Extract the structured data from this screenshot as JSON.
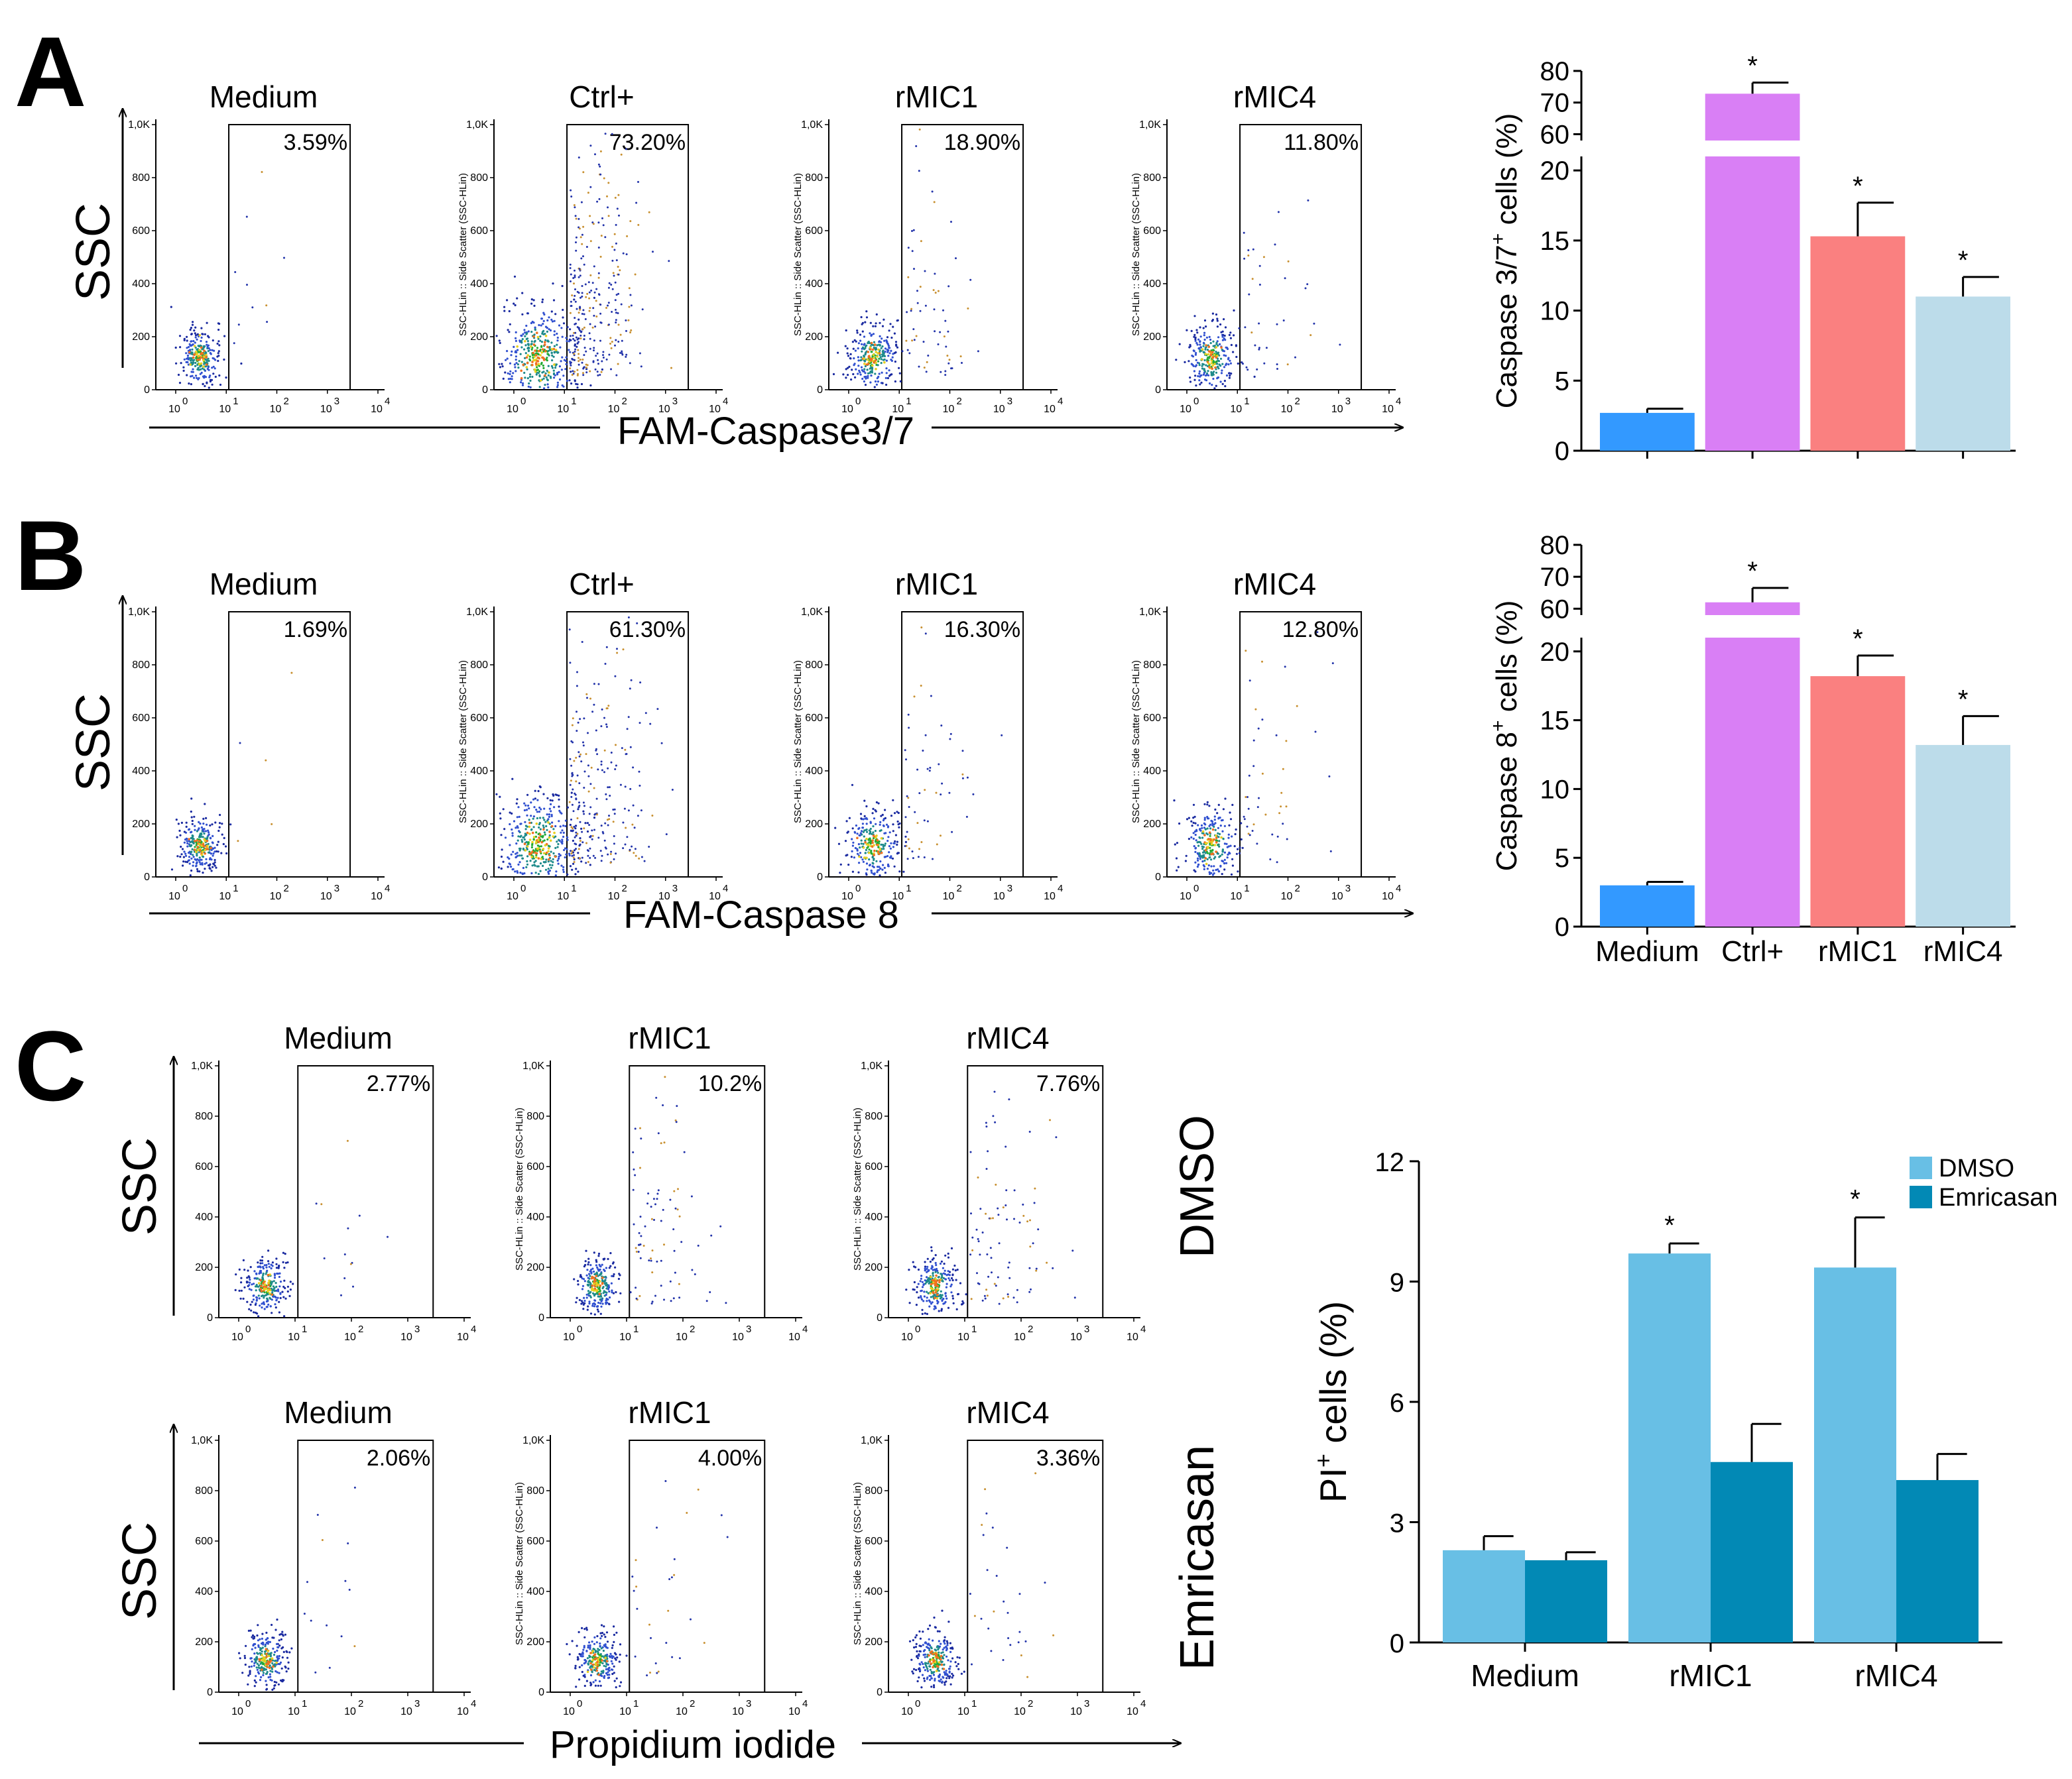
{
  "figure": {
    "panel_labels": [
      "A",
      "B",
      "C"
    ],
    "ssc_label": "SSC",
    "flow_tick_labels_x": [
      "10",
      "0",
      "10",
      "1",
      "10",
      "2",
      "10",
      "3",
      "10",
      "4"
    ],
    "flow_tick_labels_y": [
      "1,0K",
      "800",
      "600",
      "400",
      "200",
      "0"
    ],
    "flow_y_axis_label": "SSC-HLin :: Side Scatter (SSC-HLin)",
    "rows": [
      {
        "x_axis_label": "FAM-Caspase3/7",
        "plots": [
          {
            "title": "Medium",
            "percent": "3.59%"
          },
          {
            "title": "Ctrl+",
            "percent": "73.20%"
          },
          {
            "title": "rMIC1",
            "percent": "18.90%"
          },
          {
            "title": "rMIC4",
            "percent": "11.80%"
          }
        ]
      },
      {
        "x_axis_label": "FAM-Caspase 8",
        "plots": [
          {
            "title": "Medium",
            "percent": "1.69%"
          },
          {
            "title": "Ctrl+",
            "percent": "61.30%"
          },
          {
            "title": "rMIC1",
            "percent": "16.30%"
          },
          {
            "title": "rMIC4",
            "percent": "12.80%"
          }
        ]
      }
    ],
    "panel_c": {
      "x_axis_label": "Propidium iodide",
      "row_labels": [
        "DMSO",
        "Emricasan"
      ],
      "rows": [
        [
          {
            "title": "Medium",
            "percent": "2.77%"
          },
          {
            "title": "rMIC1",
            "percent": "10.2%"
          },
          {
            "title": "rMIC4",
            "percent": "7.76%"
          }
        ],
        [
          {
            "title": "Medium",
            "percent": "2.06%"
          },
          {
            "title": "rMIC1",
            "percent": "4.00%"
          },
          {
            "title": "rMIC4",
            "percent": "3.36%"
          }
        ]
      ]
    }
  },
  "chart_data": [
    {
      "type": "bar",
      "panel": "A",
      "categories": [
        "Medium",
        "Ctrl+",
        "rMIC1",
        "rMIC4"
      ],
      "values": [
        2.7,
        72.8,
        15.3,
        11.0
      ],
      "errors": [
        0.3,
        3.5,
        2.4,
        1.4
      ],
      "significant": [
        false,
        true,
        true,
        true
      ],
      "significance_marker": "*",
      "colors": [
        "#3399ff",
        "#d97ff5",
        "#fa8080",
        "#bcdcea"
      ],
      "ylabel": "Caspase 3/7+ cells (%)",
      "ylabel_main": "Caspase 3/7",
      "ylabel_sup": "+",
      "ylabel_rest": " cells (%)",
      "y_broken": true,
      "ylim_lower": [
        0,
        21
      ],
      "ylim_upper": [
        58,
        80
      ],
      "yticks_lower": [
        "0",
        "5",
        "10",
        "15",
        "20"
      ],
      "yticks_upper": [
        "60",
        "70",
        "80"
      ],
      "show_category_labels": false
    },
    {
      "type": "bar",
      "panel": "B",
      "categories": [
        "Medium",
        "Ctrl+",
        "rMIC1",
        "rMIC4"
      ],
      "values": [
        3.0,
        62.0,
        18.2,
        13.2
      ],
      "errors": [
        0.25,
        4.5,
        1.5,
        2.1
      ],
      "significant": [
        false,
        true,
        true,
        true
      ],
      "significance_marker": "*",
      "colors": [
        "#3399ff",
        "#d97ff5",
        "#fa8080",
        "#bcdcea"
      ],
      "ylabel": "Caspase 8+ cells (%)",
      "ylabel_main": "Caspase 8",
      "ylabel_sup": "+",
      "ylabel_rest": " cells (%)",
      "y_broken": true,
      "ylim_lower": [
        0,
        21
      ],
      "ylim_upper": [
        58,
        80
      ],
      "yticks_lower": [
        "0",
        "5",
        "10",
        "15",
        "20"
      ],
      "yticks_upper": [
        "60",
        "70",
        "80"
      ],
      "show_category_labels": true
    },
    {
      "type": "bar",
      "panel": "C",
      "categories": [
        "Medium",
        "rMIC1",
        "rMIC4"
      ],
      "series": [
        {
          "name": "DMSO",
          "values": [
            2.3,
            9.7,
            9.35
          ],
          "errors": [
            0.35,
            0.25,
            1.25
          ],
          "significant": [
            false,
            true,
            true
          ],
          "color": "#68bfe5"
        },
        {
          "name": "Emricasan",
          "values": [
            2.05,
            4.5,
            4.05
          ],
          "errors": [
            0.2,
            0.95,
            0.65
          ],
          "significant": [
            false,
            false,
            false
          ],
          "color": "#0289b5"
        }
      ],
      "significance_marker": "*",
      "ylabel": "PI+ cells (%)",
      "ylabel_main": "PI",
      "ylabel_sup": "+",
      "ylabel_rest": " cells (%)",
      "ylim": [
        0,
        12
      ],
      "yticks": [
        "0",
        "3",
        "6",
        "9",
        "12"
      ],
      "legend": "top-right"
    }
  ]
}
